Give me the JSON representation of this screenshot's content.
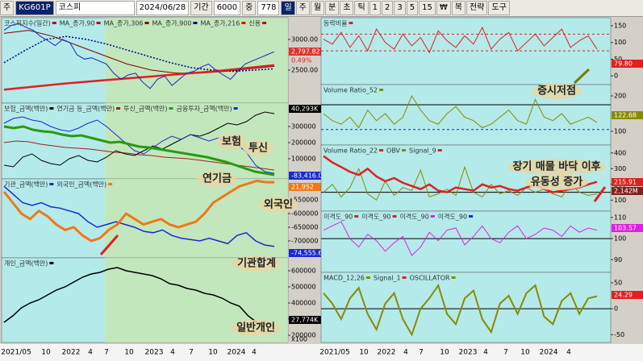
{
  "toolbar": {
    "mode": "주",
    "code": "KG601P",
    "name": "코스피",
    "date": "2024/06/28",
    "period_label": "기간",
    "period": "6000",
    "count_label": "중",
    "count": "778",
    "buttons": [
      "일",
      "주",
      "월",
      "분",
      "초",
      "틱",
      "1",
      "2",
      "3",
      "5",
      "15",
      "₩",
      "복",
      "전략",
      "도구"
    ]
  },
  "x_axis": [
    "2021/05",
    "10",
    "2022",
    "4",
    "7",
    "10",
    "2023",
    "4",
    "7",
    "10",
    "2024",
    "4"
  ],
  "left_panels": [
    {
      "legend": [
        {
          "name": "코스피지수(일간)",
          "color": "#c00000"
        },
        {
          "name": "MA_종가,90",
          "color": "#c00000"
        },
        {
          "name": "MA_종가,306",
          "color": "#800000"
        },
        {
          "name": "MA_종가,900",
          "color": "#000080"
        },
        {
          "name": "MA_종가,216",
          "color": "#e00000"
        },
        {
          "name": "신용",
          "color": "#c00000"
        }
      ],
      "ylim": [
        1960,
        3355
      ],
      "yticks": [
        {
          "value": 3000,
          "label": "3000.00"
        },
        {
          "value": 2500,
          "label": "2500.00"
        }
      ],
      "boxes": [
        {
          "label": "2,797.82",
          "color": "#e03030"
        },
        {
          "label": "0.49%",
          "color": "none"
        }
      ],
      "series": [
        {
          "color": "#000080",
          "width": 1.5,
          "dash": "2 2",
          "values": [
            2620,
            2820,
            3000,
            3050,
            3000,
            2920,
            2820,
            2720,
            2620,
            2540,
            2500,
            2480,
            2500,
            2520
          ]
        },
        {
          "color": "#800000",
          "width": 1,
          "dash": "",
          "values": [
            3100,
            3150,
            3050,
            2900,
            2750,
            2600,
            2500,
            2450,
            2450,
            2480,
            2520,
            2560
          ]
        },
        {
          "color": "#e02020",
          "width": 2.5,
          "dash": "",
          "values": [
            2180,
            2230,
            2280,
            2320,
            2360,
            2400,
            2440,
            2480,
            2530,
            2580
          ]
        },
        {
          "color": "#2020c0",
          "width": 1,
          "dash": "",
          "values": [
            3150,
            3230,
            3260,
            3200,
            3150,
            3050,
            2980,
            2900,
            3000,
            2950,
            2750,
            2680,
            2700,
            2650,
            2600,
            2450,
            2350,
            2420,
            2450,
            2300,
            2200,
            2350,
            2400,
            2250,
            2350,
            2450,
            2480,
            2550,
            2600,
            2500,
            2420,
            2350,
            2480,
            2600,
            2650,
            2700,
            2750,
            2800
          ]
        }
      ]
    },
    {
      "legend": [
        {
          "name": "보험_금액(백만)",
          "color": "#000000"
        },
        {
          "name": "연기금 등_금액(백만)",
          "color": "#a02020"
        },
        {
          "name": "투신_금액(백만)",
          "color": "#2a9a10"
        },
        {
          "name": "금융투자_금액(백만)",
          "color": "#1a2ad0"
        }
      ],
      "ylim": [
        -25000,
        445000
      ],
      "yticks": [
        300000,
        200000,
        100000
      ],
      "boxes": [
        {
          "label": "40,293K",
          "color": "#000000"
        },
        {
          "label": "-83,416.06",
          "color": "#1a2ad0"
        }
      ],
      "series": [
        {
          "color": "#a02020",
          "width": 1,
          "dash": "",
          "values": [
            200000,
            210000,
            205000,
            190000,
            180000,
            170000,
            165000,
            160000,
            150000,
            140000,
            135000,
            125000,
            120000,
            110000,
            105000,
            100000,
            90000,
            80000,
            70000,
            60000,
            50000,
            40000,
            30000
          ]
        },
        {
          "color": "#000000",
          "width": 1,
          "dash": "",
          "values": [
            60000,
            50000,
            110000,
            130000,
            90000,
            70000,
            60000,
            100000,
            120000,
            90000,
            80000,
            110000,
            150000,
            130000,
            120000,
            150000,
            180000,
            160000,
            190000,
            220000,
            250000,
            240000,
            260000,
            290000,
            320000,
            310000,
            330000,
            370000,
            390000,
            380000
          ]
        },
        {
          "color": "#1a2ad0",
          "width": 1,
          "dash": "",
          "values": [
            320000,
            350000,
            360000,
            340000,
            330000,
            300000,
            280000,
            270000,
            290000,
            320000,
            340000,
            300000,
            250000,
            200000,
            150000,
            130000,
            170000,
            210000,
            240000,
            220000,
            250000,
            230000,
            210000,
            230000,
            200000,
            190000,
            140000,
            60000,
            20000,
            10000
          ]
        },
        {
          "color": "#2a9a10",
          "width": 3,
          "dash": "",
          "values": [
            300000,
            290000,
            300000,
            280000,
            270000,
            265000,
            250000,
            240000,
            245000,
            230000,
            215000,
            200000,
            205000,
            190000,
            175000,
            170000,
            160000,
            150000,
            140000,
            130000,
            120000,
            110000,
            95000,
            80000,
            60000,
            40000,
            20000,
            10000,
            0
          ]
        }
      ]
    },
    {
      "legend": [
        {
          "name": "기관_금액(백만)",
          "color": "#1a2ad0"
        },
        {
          "name": "외국인_금액(백만)",
          "color": "#f07818"
        }
      ],
      "ylim": [
        -762000,
        -473000
      ],
      "yticks": [
        -550000,
        -600000,
        -650000,
        -700000
      ],
      "boxes": [
        {
          "label": "21,952",
          "color": "#f07818"
        },
        {
          "label": "-74,555.60",
          "color": "#1a2ad0"
        }
      ],
      "series": [
        {
          "color": "#1a2ad0",
          "width": 1.5,
          "dash": "",
          "values": [
            -500000,
            -530000,
            -560000,
            -570000,
            -560000,
            -575000,
            -580000,
            -590000,
            -600000,
            -630000,
            -650000,
            -640000,
            -630000,
            -640000,
            -650000,
            -665000,
            -670000,
            -660000,
            -680000,
            -690000,
            -695000,
            -700000,
            -690000,
            -700000,
            -710000,
            -680000,
            -670000,
            -700000,
            -715000,
            -720000
          ]
        },
        {
          "color": "#f07818",
          "width": 3,
          "dash": "",
          "values": [
            -520000,
            -560000,
            -600000,
            -620000,
            -590000,
            -610000,
            -640000,
            -660000,
            -650000,
            -680000,
            -700000,
            -690000,
            -660000,
            -640000,
            -600000,
            -620000,
            -640000,
            -630000,
            -620000,
            -640000,
            -650000,
            -640000,
            -630000,
            -600000,
            -560000,
            -540000,
            -520000,
            -500000,
            -490000,
            -480000,
            -485000,
            -485000
          ]
        }
      ]
    },
    {
      "legend": [
        {
          "name": "개인_금액(백만)",
          "color": "#000000"
        }
      ],
      "ylim": [
        155000,
        680000
      ],
      "yticks": [
        600000,
        500000,
        400000,
        300000,
        200000
      ],
      "unit": "x100",
      "boxes": [
        {
          "label": "27,774K",
          "color": "#000000"
        }
      ],
      "series": [
        {
          "color": "#000000",
          "width": 1.5,
          "dash": "",
          "values": [
            280000,
            320000,
            370000,
            400000,
            420000,
            450000,
            480000,
            500000,
            530000,
            560000,
            580000,
            590000,
            610000,
            620000,
            600000,
            590000,
            580000,
            570000,
            550000,
            520000,
            510000,
            490000,
            480000,
            460000,
            450000,
            430000,
            400000,
            380000,
            320000,
            280000,
            270000,
            260000
          ]
        }
      ]
    }
  ],
  "right_panels": [
    {
      "legend": [
        {
          "name": "등락비율",
          "color": "#e02020"
        }
      ],
      "ylim": [
        -26,
        174
      ],
      "yticks": [
        150,
        100,
        50,
        0
      ],
      "boxes": [
        {
          "label": "79.80",
          "color": "#e02020"
        }
      ],
      "ref_lines": [
        {
          "value": 125,
          "color": "#e02020",
          "dash": "3 3"
        },
        {
          "value": 75,
          "color": "#e02020",
          "dash": "3 3"
        }
      ],
      "series": [
        {
          "color": "#e02020",
          "width": 1,
          "dash": "",
          "values": [
            110,
            95,
            130,
            85,
            120,
            75,
            140,
            100,
            80,
            125,
            90,
            115,
            70,
            135,
            105,
            85,
            120,
            95,
            145,
            80,
            110,
            130,
            75,
            100,
            125,
            90,
            115,
            140,
            85,
            105,
            120,
            80
          ]
        }
      ]
    },
    {
      "legend": [
        {
          "name": "Volume Ratio_52",
          "color": "#8a8a00"
        }
      ],
      "ylim": [
        61,
        232
      ],
      "yticks": [
        200,
        100
      ],
      "boxes": [
        {
          "label": "122.68",
          "color": "#8a8a00"
        }
      ],
      "ref_lines": [
        {
          "value": 175,
          "color": "#000000",
          "dash": ""
        },
        {
          "value": 105,
          "color": "#1a2ad0",
          "dash": "3 3"
        }
      ],
      "series": [
        {
          "color": "#8a8a00",
          "width": 1,
          "dash": "",
          "values": [
            150,
            130,
            120,
            140,
            110,
            160,
            130,
            150,
            120,
            140,
            200,
            160,
            130,
            120,
            150,
            170,
            140,
            130,
            110,
            120,
            140,
            160,
            130,
            120,
            190,
            140,
            130,
            150,
            120,
            130,
            140,
            125
          ]
        }
      ]
    },
    {
      "legend": [
        {
          "name": "Volume Ratio_22",
          "color": "#e02020"
        },
        {
          "name": "OBV",
          "color": "#8a8a00"
        },
        {
          "name": "Signal_9",
          "color": "#e02020"
        }
      ],
      "ylim": [
        30,
        450
      ],
      "yticks": [
        400,
        300,
        200,
        100
      ],
      "boxes": [
        {
          "label": "215.91",
          "color": "#e02020"
        },
        {
          "label": "2,142M",
          "color": "#802020"
        }
      ],
      "ref_lines": [
        {
          "value": 150,
          "color": "#000000",
          "dash": ""
        }
      ],
      "series": [
        {
          "color": "#8a8a00",
          "width": 1,
          "dash": "",
          "values": [
            150,
            200,
            120,
            180,
            300,
            140,
            100,
            220,
            130,
            180,
            160,
            290,
            120,
            140,
            170,
            130,
            310,
            150,
            120,
            200,
            140,
            160,
            130,
            180,
            150,
            170,
            140,
            120,
            200,
            150,
            130,
            140
          ]
        },
        {
          "color": "#e02020",
          "width": 2.5,
          "dash": "",
          "values": [
            380,
            340,
            310,
            280,
            260,
            300,
            250,
            220,
            240,
            210,
            190,
            170,
            200,
            160,
            150,
            180,
            170,
            160,
            200,
            180,
            190,
            170,
            160,
            180,
            200,
            170,
            150,
            160,
            170,
            180,
            200,
            216
          ]
        }
      ]
    },
    {
      "legend": [
        {
          "name": "이격도_90",
          "color": "#e02020"
        },
        {
          "name": "이격도_90",
          "color": "#e02020"
        },
        {
          "name": "이격도_90",
          "color": "#e020e0"
        },
        {
          "name": "이격도_90",
          "color": "#1a2ad0"
        }
      ],
      "ylim": [
        84,
        113
      ],
      "yticks": [
        110,
        100,
        90
      ],
      "boxes": [
        {
          "label": "103.57",
          "color": "#e020e0"
        }
      ],
      "ref_lines": [
        {
          "value": 100,
          "color": "#000000",
          "dash": ""
        }
      ],
      "series": [
        {
          "color": "#e020e0",
          "width": 1,
          "dash": "",
          "values": [
            104,
            106,
            108,
            100,
            96,
            102,
            99,
            94,
            98,
            101,
            92,
            96,
            103,
            99,
            104,
            105,
            97,
            101,
            106,
            100,
            98,
            103,
            106,
            100,
            102,
            105,
            104,
            101,
            106,
            103,
            105,
            104
          ]
        }
      ]
    },
    {
      "legend": [
        {
          "name": "MACD_12,26",
          "color": "#8a8a00"
        },
        {
          "name": "Signal_1",
          "color": "#e02020"
        },
        {
          "name": "OSCILLATOR",
          "color": "#8a8a00"
        }
      ],
      "ylim": [
        -65,
        70
      ],
      "yticks": [
        50,
        0,
        -50
      ],
      "boxes": [
        {
          "label": "24.29",
          "color": "#e02020"
        }
      ],
      "ref_lines": [
        {
          "value": 0,
          "color": "#000000",
          "dash": ""
        }
      ],
      "series": [
        {
          "color": "#8a8a00",
          "width": 2,
          "dash": "",
          "values": [
            30,
            10,
            -20,
            20,
            40,
            -10,
            -40,
            10,
            30,
            -20,
            -50,
            0,
            20,
            45,
            -10,
            -30,
            20,
            35,
            -20,
            -45,
            10,
            25,
            -10,
            30,
            45,
            -15,
            -30,
            15,
            30,
            -10,
            20,
            24
          ]
        }
      ]
    }
  ],
  "annotations": [
    "보험",
    "투신",
    "연기금",
    "외국인",
    "기관합계",
    "일반개인",
    "증시저점",
    "장기 매물 바닥 이후",
    "유동성 증가"
  ]
}
